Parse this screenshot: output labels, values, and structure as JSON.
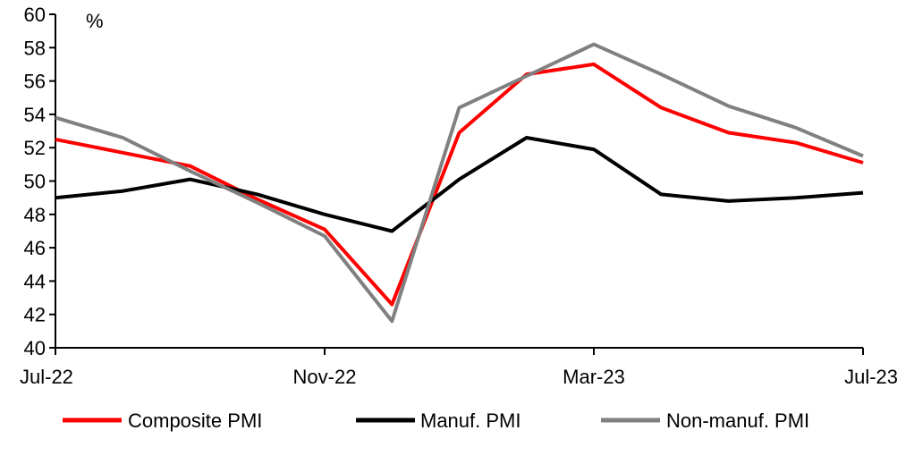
{
  "chart_data": {
    "type": "line",
    "title": "",
    "xlabel": "",
    "ylabel": "",
    "unit_label": "%",
    "ylim": [
      40,
      60
    ],
    "ytick_step": 2,
    "grid": false,
    "legend_position": "bottom",
    "x": [
      "Jul-22",
      "Aug-22",
      "Sep-22",
      "Oct-22",
      "Nov-22",
      "Dec-22",
      "Jan-23",
      "Feb-23",
      "Mar-23",
      "Apr-23",
      "May-23",
      "Jun-23",
      "Jul-23"
    ],
    "x_tick_labels": [
      "Jul-22",
      "Nov-22",
      "Mar-23",
      "Jul-23"
    ],
    "series": [
      {
        "name": "Composite PMI",
        "color": "#ff0000",
        "values": [
          52.5,
          51.7,
          50.9,
          48.9,
          47.1,
          42.6,
          52.9,
          56.4,
          57.0,
          54.4,
          52.9,
          52.3,
          51.1
        ]
      },
      {
        "name": "Manuf. PMI",
        "color": "#000000",
        "values": [
          49.0,
          49.4,
          50.1,
          49.2,
          48.0,
          47.0,
          50.1,
          52.6,
          51.9,
          49.2,
          48.8,
          49.0,
          49.3
        ]
      },
      {
        "name": "Non-manuf. PMI",
        "color": "#808080",
        "values": [
          53.8,
          52.6,
          50.6,
          48.7,
          46.7,
          41.6,
          54.4,
          56.3,
          58.2,
          56.4,
          54.5,
          53.2,
          51.5
        ]
      }
    ]
  }
}
